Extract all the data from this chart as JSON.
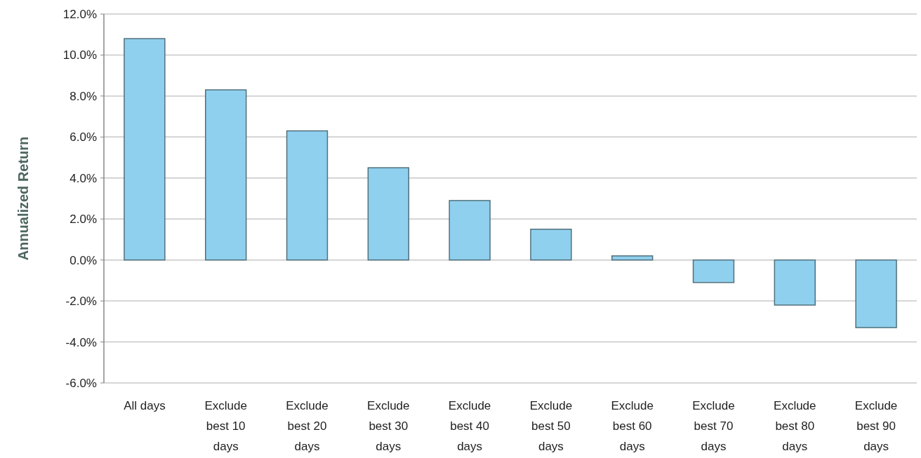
{
  "chart_data": {
    "type": "bar",
    "ylabel": "Annualized Return",
    "categories": [
      "All days",
      "Exclude best 10 days",
      "Exclude best 20 days",
      "Exclude best 30 days",
      "Exclude best 40 days",
      "Exclude best 50 days",
      "Exclude best 60 days",
      "Exclude best 70 days",
      "Exclude best 80 days",
      "Exclude best 90 days"
    ],
    "values": [
      10.8,
      8.3,
      6.3,
      4.5,
      2.9,
      1.5,
      0.2,
      -1.1,
      -2.2,
      -3.3
    ],
    "color": "#8fd0ee",
    "ylim": [
      -6,
      12
    ],
    "yticks": [
      {
        "value": -6,
        "label": "-6.0%"
      },
      {
        "value": -4,
        "label": "-4.0%"
      },
      {
        "value": -2,
        "label": "-2.0%"
      },
      {
        "value": 0,
        "label": "0.0%"
      },
      {
        "value": 2,
        "label": "2.0%"
      },
      {
        "value": 4,
        "label": "4.0%"
      },
      {
        "value": 6,
        "label": "6.0%"
      },
      {
        "value": 8,
        "label": "8.0%"
      },
      {
        "value": 10,
        "label": "10.0%"
      },
      {
        "value": 12,
        "label": "12.0%"
      }
    ],
    "grid": "y"
  }
}
